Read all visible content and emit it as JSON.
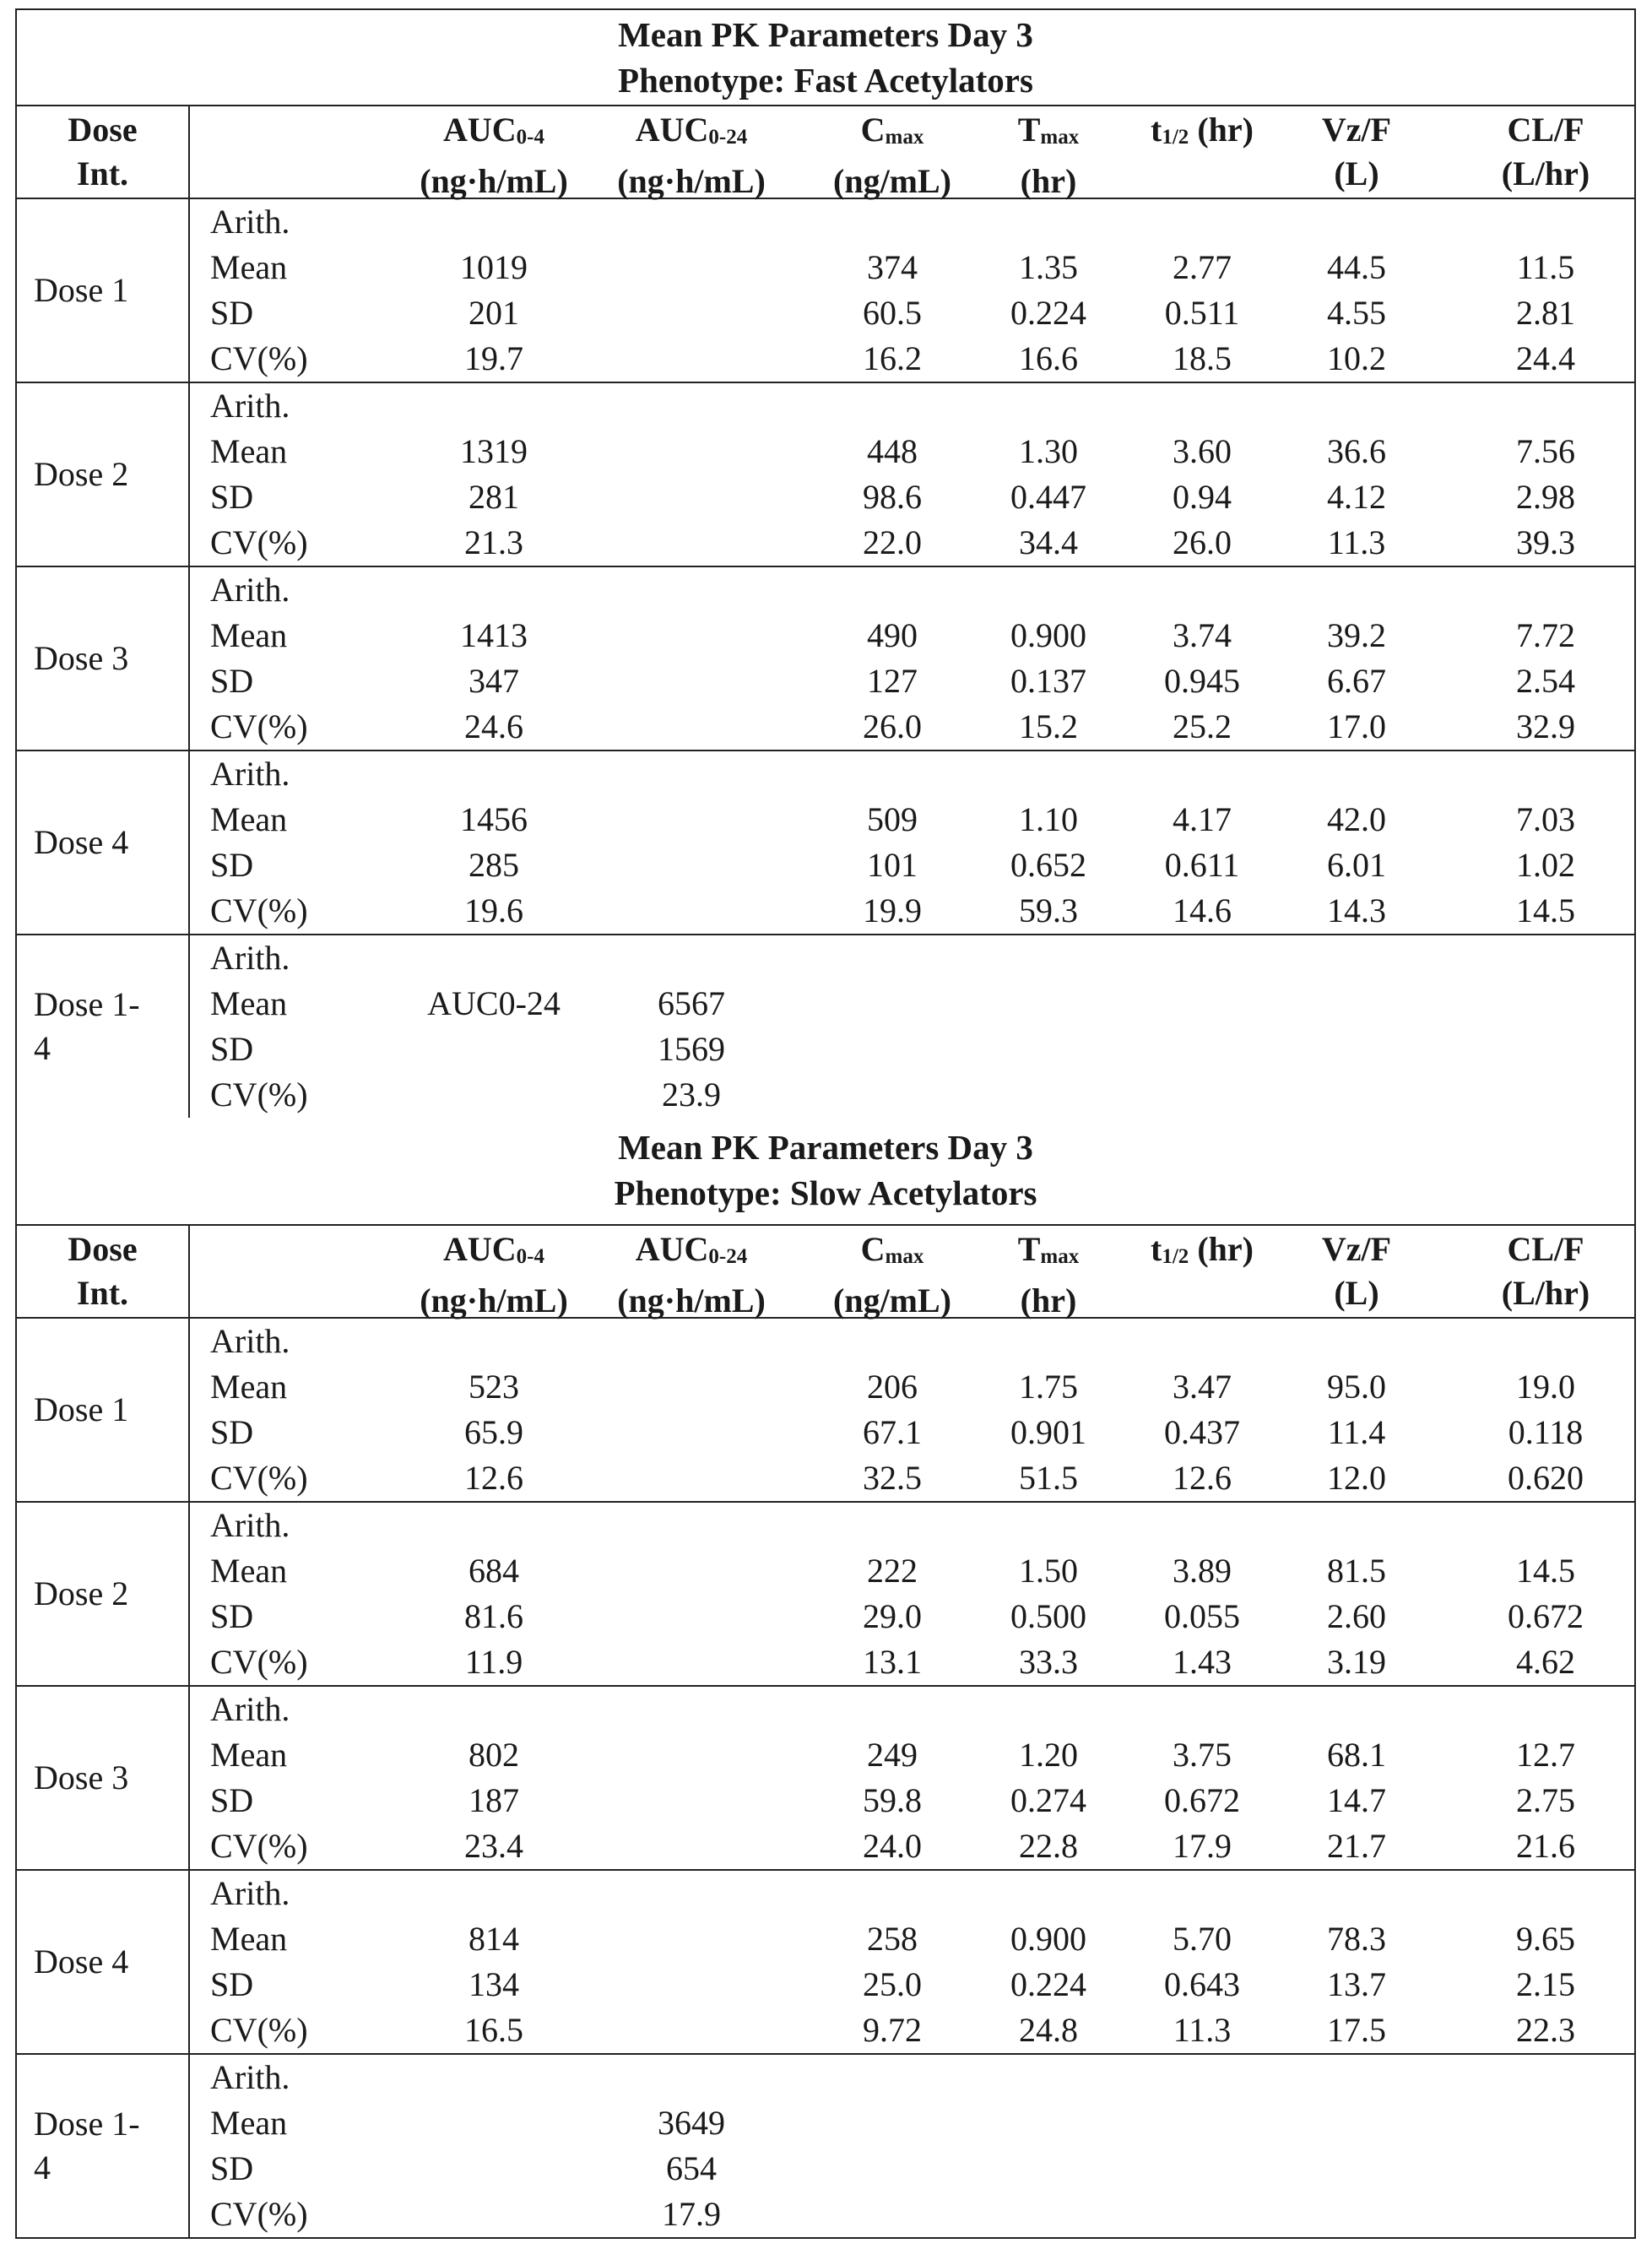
{
  "columns": [
    {
      "name": "AUC",
      "sub": "0-4",
      "unit": "(ng·h/mL)"
    },
    {
      "name": "AUC",
      "sub": "0-24",
      "unit": "(ng·h/mL)"
    },
    {
      "name": "C",
      "sub": "max",
      "unit": "(ng/mL)"
    },
    {
      "name": "T",
      "sub": "max",
      "unit": "(hr)"
    },
    {
      "name": "t",
      "sub": "1/2",
      "unit": "",
      "suffix": " (hr)"
    },
    {
      "name": "Vz/F",
      "sub": "",
      "unit": "(L)"
    },
    {
      "name": "CL/F",
      "sub": "",
      "unit": "(L/hr)"
    }
  ],
  "dose_header": [
    "Dose",
    "Int."
  ],
  "stat_labels": [
    "Arith.",
    "Mean",
    "SD",
    "CV(%)"
  ],
  "sections": [
    {
      "title1": "Mean PK Parameters Day 3",
      "title2": "Phenotype: Fast Acetylators",
      "groups": [
        {
          "dose": "Dose 1",
          "mean": [
            "1019",
            "",
            "374",
            "1.35",
            "2.77",
            "44.5",
            "11.5"
          ],
          "sd": [
            "201",
            "",
            "60.5",
            "0.224",
            "0.511",
            "4.55",
            "2.81"
          ],
          "cv": [
            "19.7",
            "",
            "16.2",
            "16.6",
            "18.5",
            "10.2",
            "24.4"
          ]
        },
        {
          "dose": "Dose 2",
          "mean": [
            "1319",
            "",
            "448",
            "1.30",
            "3.60",
            "36.6",
            "7.56"
          ],
          "sd": [
            "281",
            "",
            "98.6",
            "0.447",
            "0.94",
            "4.12",
            "2.98"
          ],
          "cv": [
            "21.3",
            "",
            "22.0",
            "34.4",
            "26.0",
            "11.3",
            "39.3"
          ]
        },
        {
          "dose": "Dose 3",
          "mean": [
            "1413",
            "",
            "490",
            "0.900",
            "3.74",
            "39.2",
            "7.72"
          ],
          "sd": [
            "347",
            "",
            "127",
            "0.137",
            "0.945",
            "6.67",
            "2.54"
          ],
          "cv": [
            "24.6",
            "",
            "26.0",
            "15.2",
            "25.2",
            "17.0",
            "32.9"
          ]
        },
        {
          "dose": "Dose 4",
          "mean": [
            "1456",
            "",
            "509",
            "1.10",
            "4.17",
            "42.0",
            "7.03"
          ],
          "sd": [
            "285",
            "",
            "101",
            "0.652",
            "0.611",
            "6.01",
            "1.02"
          ],
          "cv": [
            "19.6",
            "",
            "19.9",
            "59.3",
            "14.6",
            "14.3",
            "14.5"
          ]
        },
        {
          "dose": "Dose 1-\n4",
          "mean": [
            "AUC0-24",
            "6567",
            "",
            "",
            "",
            "",
            ""
          ],
          "sd": [
            "",
            "1569",
            "",
            "",
            "",
            "",
            ""
          ],
          "cv": [
            "",
            "23.9",
            "",
            "",
            "",
            "",
            ""
          ]
        }
      ]
    },
    {
      "title1": "Mean PK Parameters Day 3",
      "title2": "Phenotype: Slow Acetylators",
      "groups": [
        {
          "dose": "Dose 1",
          "mean": [
            "523",
            "",
            "206",
            "1.75",
            "3.47",
            "95.0",
            "19.0"
          ],
          "sd": [
            "65.9",
            "",
            "67.1",
            "0.901",
            "0.437",
            "11.4",
            "0.118"
          ],
          "cv": [
            "12.6",
            "",
            "32.5",
            "51.5",
            "12.6",
            "12.0",
            "0.620"
          ]
        },
        {
          "dose": "Dose 2",
          "mean": [
            "684",
            "",
            "222",
            "1.50",
            "3.89",
            "81.5",
            "14.5"
          ],
          "sd": [
            "81.6",
            "",
            "29.0",
            "0.500",
            "0.055",
            "2.60",
            "0.672"
          ],
          "cv": [
            "11.9",
            "",
            "13.1",
            "33.3",
            "1.43",
            "3.19",
            "4.62"
          ]
        },
        {
          "dose": "Dose 3",
          "mean": [
            "802",
            "",
            "249",
            "1.20",
            "3.75",
            "68.1",
            "12.7"
          ],
          "sd": [
            "187",
            "",
            "59.8",
            "0.274",
            "0.672",
            "14.7",
            "2.75"
          ],
          "cv": [
            "23.4",
            "",
            "24.0",
            "22.8",
            "17.9",
            "21.7",
            "21.6"
          ]
        },
        {
          "dose": "Dose 4",
          "mean": [
            "814",
            "",
            "258",
            "0.900",
            "5.70",
            "78.3",
            "9.65"
          ],
          "sd": [
            "134",
            "",
            "25.0",
            "0.224",
            "0.643",
            "13.7",
            "2.15"
          ],
          "cv": [
            "16.5",
            "",
            "9.72",
            "24.8",
            "11.3",
            "17.5",
            "22.3"
          ]
        },
        {
          "dose": "Dose 1-\n4",
          "mean": [
            "",
            "3649",
            "",
            "",
            "",
            "",
            ""
          ],
          "sd": [
            "",
            "654",
            "",
            "",
            "",
            "",
            ""
          ],
          "cv": [
            "",
            "17.9",
            "",
            "",
            "",
            "",
            ""
          ]
        }
      ]
    }
  ]
}
